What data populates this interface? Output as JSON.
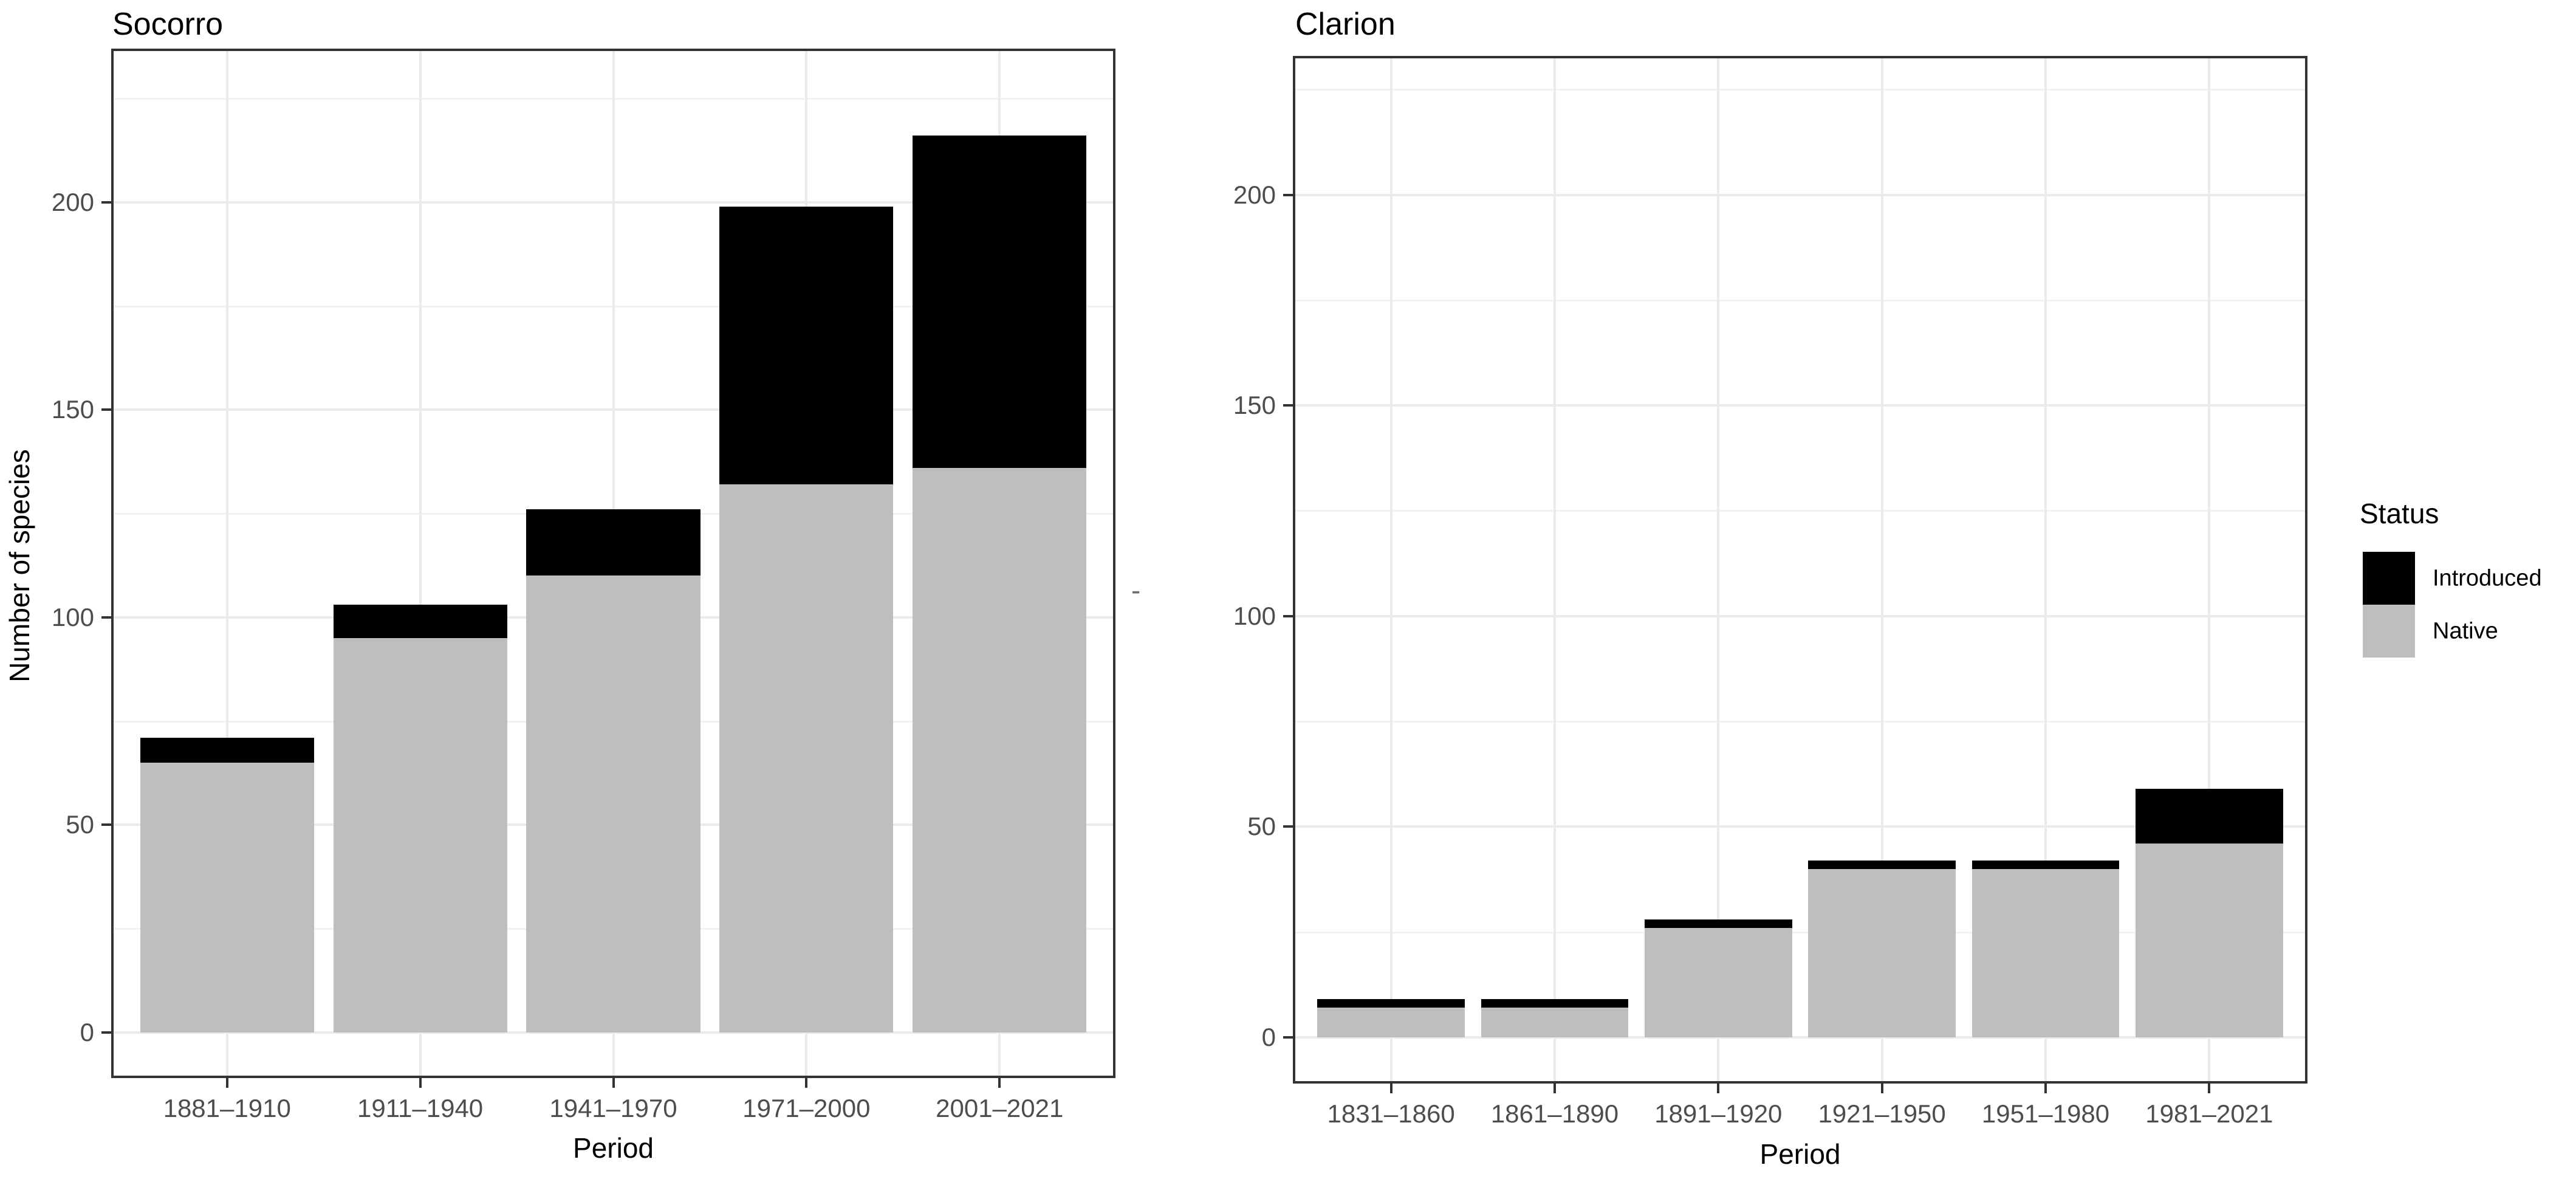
{
  "figure": {
    "background": "#ffffff"
  },
  "colors": {
    "introduced": "#000000",
    "native": "#bebebe",
    "grid_major": "#ebebeb",
    "grid_minor": "#f2f2f2",
    "panel_border": "#333333",
    "tick_mark": "#333333",
    "tick_text": "#4d4d4d",
    "axis_title_text": "#000000"
  },
  "legend": {
    "title": "Status",
    "items": [
      {
        "label": "Introduced",
        "color": "#000000"
      },
      {
        "label": "Native",
        "color": "#bebebe"
      }
    ],
    "position": "right"
  },
  "chart_data": [
    {
      "type": "bar",
      "stacked": true,
      "title": "Socorro",
      "xlabel": "Period",
      "ylabel": "Number of species",
      "categories": [
        "1881–1910",
        "1911–1940",
        "1941–1970",
        "1971–2000",
        "2001–2021"
      ],
      "series": [
        {
          "name": "Native",
          "values": [
            65,
            95,
            110,
            132,
            136
          ]
        },
        {
          "name": "Introduced",
          "values": [
            6,
            8,
            16,
            67,
            80
          ]
        }
      ],
      "totals": [
        71,
        103,
        126,
        199,
        216
      ],
      "y_ticks": [
        0,
        50,
        100,
        150,
        200
      ],
      "y_minor_ticks": [
        25,
        75,
        125,
        175,
        225
      ],
      "ylim": [
        -11,
        237
      ],
      "grid": true,
      "legend_position": "right"
    },
    {
      "type": "bar",
      "stacked": true,
      "title": "Clarion",
      "xlabel": "Period",
      "ylabel": "-",
      "categories": [
        "1831–1860",
        "1861–1890",
        "1891–1920",
        "1921–1950",
        "1951–1980",
        "1981–2021"
      ],
      "series": [
        {
          "name": "Native",
          "values": [
            7,
            7,
            26,
            40,
            40,
            46
          ]
        },
        {
          "name": "Introduced",
          "values": [
            2,
            2,
            2,
            2,
            2,
            13
          ]
        }
      ],
      "totals": [
        9,
        9,
        28,
        42,
        42,
        59
      ],
      "y_ticks": [
        0,
        50,
        100,
        150,
        200
      ],
      "y_minor_ticks": [
        25,
        75,
        125,
        175,
        225
      ],
      "ylim": [
        -11,
        233
      ],
      "grid": true,
      "legend_position": "right"
    }
  ]
}
